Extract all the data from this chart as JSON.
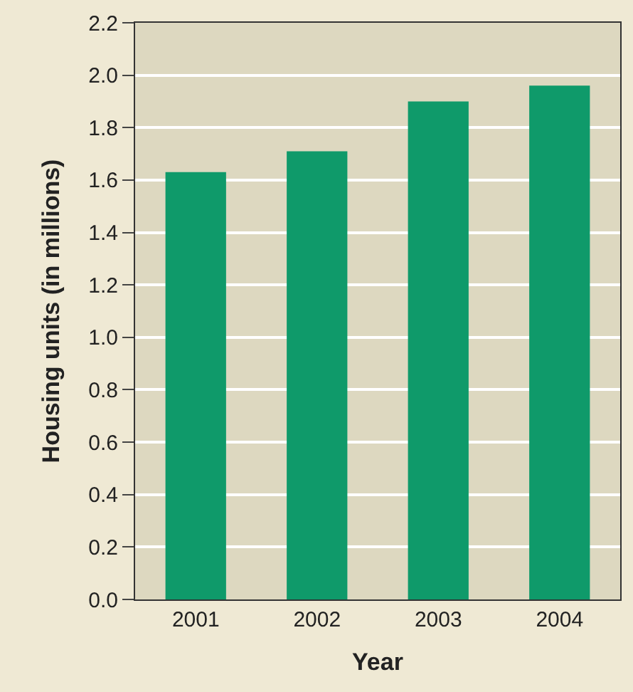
{
  "chart_data": {
    "type": "bar",
    "xlabel": "Year",
    "ylabel": "Housing units (in millions)",
    "categories": [
      "2001",
      "2002",
      "2003",
      "2004"
    ],
    "values": [
      1.63,
      1.71,
      1.9,
      1.96
    ],
    "color": "#0f9a6a",
    "ylim": [
      0,
      2.2
    ],
    "yticks": [
      "0.0",
      0.2,
      0.4,
      0.6,
      0.8,
      "1.0",
      1.2,
      1.4,
      1.6,
      1.8,
      "2.0",
      2.2
    ],
    "grid": "y"
  }
}
